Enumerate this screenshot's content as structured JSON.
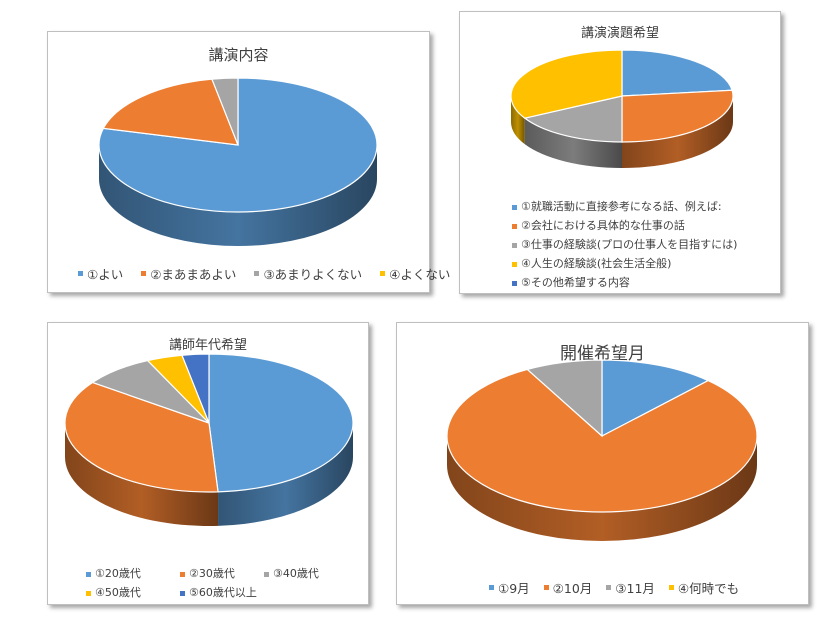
{
  "chart_data": [
    {
      "type": "pie",
      "title": "講演内容",
      "categories": [
        "①よい",
        "②まあまあよい",
        "③あまりよくない",
        "④よくない"
      ],
      "values": [
        79,
        18,
        3,
        0
      ],
      "colors": [
        "#5b9bd5",
        "#ed7d31",
        "#a5a5a5",
        "#ffc000"
      ],
      "legend": "bottom"
    },
    {
      "type": "pie",
      "title": "講演演題希望",
      "categories": [
        "①就職活動に直接参考になる話、例えば:",
        "②会社における具体的な仕事の話",
        "③仕事の経験談(プロの仕事人を目指すには)",
        "④人生の経験談(社会生活全般)",
        "⑤その他希望する内容"
      ],
      "values": [
        23,
        27,
        17,
        33,
        0
      ],
      "colors": [
        "#5b9bd5",
        "#ed7d31",
        "#a5a5a5",
        "#ffc000",
        "#4472c4"
      ],
      "legend": "bottom"
    },
    {
      "type": "pie",
      "title": "講師年代希望",
      "categories": [
        "①20歳代",
        "②30歳代",
        "③40歳代",
        "④50歳代",
        "⑤60歳代以上"
      ],
      "values": [
        49,
        36,
        8,
        4,
        3
      ],
      "colors": [
        "#5b9bd5",
        "#ed7d31",
        "#a5a5a5",
        "#ffc000",
        "#4472c4"
      ],
      "legend": "bottom"
    },
    {
      "type": "pie",
      "title": "開催希望月",
      "categories": [
        "①9月",
        "②10月",
        "③11月",
        "④何時でも"
      ],
      "values": [
        12,
        80,
        8,
        0
      ],
      "colors": [
        "#5b9bd5",
        "#ed7d31",
        "#a5a5a5",
        "#ffc000"
      ],
      "legend": "bottom"
    }
  ]
}
